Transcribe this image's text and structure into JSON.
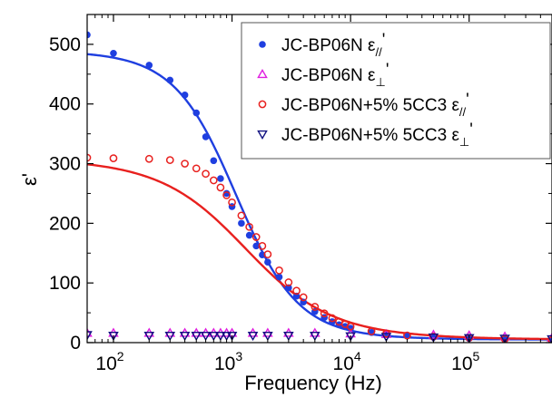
{
  "chart_data": {
    "type": "scatter",
    "title": "",
    "xlabel": "Frequency (Hz)",
    "ylabel": "ε'",
    "xscale": "log",
    "xlim": [
      60,
      500000
    ],
    "ylim": [
      0,
      550
    ],
    "x_ticks": [
      {
        "value": 100,
        "label": "10",
        "exp": "2"
      },
      {
        "value": 1000,
        "label": "10",
        "exp": "3"
      },
      {
        "value": 10000,
        "label": "10",
        "exp": "4"
      },
      {
        "value": 100000,
        "label": "10",
        "exp": "5"
      }
    ],
    "y_ticks": [
      0,
      100,
      200,
      300,
      400,
      500
    ],
    "legend_position": "top-right",
    "series": [
      {
        "name": "JC-BP06N ε//'",
        "legend_base": "JC-BP06N ε",
        "legend_sub": "//",
        "marker": "filled-circle",
        "color": "#1f3fe0",
        "x": [
          60,
          100,
          200,
          300,
          400,
          500,
          600,
          700,
          800,
          900,
          1000,
          1200,
          1400,
          1600,
          1800,
          2000,
          2500,
          3000,
          3500,
          4000,
          5000,
          6000,
          7000,
          8000,
          9000,
          10000,
          15000,
          20000,
          30000,
          50000,
          100000,
          200000,
          500000
        ],
        "y": [
          516,
          485,
          465,
          440,
          415,
          385,
          345,
          305,
          275,
          250,
          228,
          200,
          180,
          162,
          147,
          135,
          110,
          92,
          78,
          68,
          52,
          42,
          35,
          30,
          27,
          24,
          17,
          13,
          11,
          9,
          7,
          5,
          3
        ]
      },
      {
        "name": "JC-BP06N ε⊥'",
        "legend_base": "JC-BP06N ε",
        "legend_sub": "⊥",
        "marker": "open-triangle-up",
        "color": "#e01ee0",
        "x": [
          60,
          100,
          200,
          300,
          400,
          500,
          600,
          700,
          800,
          900,
          1000,
          1500,
          2000,
          3000,
          5000,
          10000,
          20000,
          50000,
          100000,
          200000,
          500000
        ],
        "y": [
          16,
          16,
          16,
          16,
          16,
          16,
          16,
          16,
          16,
          16,
          16,
          16,
          16,
          16,
          16,
          15,
          14,
          13,
          12,
          10,
          8
        ]
      },
      {
        "name": "JC-BP06N+5% 5CC3 ε//'",
        "legend_base": "JC-BP06N+5% 5CC3 ε",
        "legend_sub": "//",
        "marker": "open-circle",
        "color": "#e8201e",
        "x": [
          60,
          100,
          200,
          300,
          400,
          500,
          600,
          700,
          800,
          900,
          1000,
          1200,
          1400,
          1600,
          1800,
          2000,
          2500,
          3000,
          3500,
          4000,
          5000,
          6000,
          7000,
          8000,
          9000,
          10000,
          15000,
          20000,
          30000,
          50000,
          100000,
          200000,
          500000
        ],
        "y": [
          310,
          309,
          308,
          306,
          300,
          292,
          283,
          272,
          260,
          247,
          235,
          213,
          194,
          177,
          162,
          148,
          121,
          101,
          87,
          76,
          60,
          49,
          41,
          35,
          31,
          27,
          19,
          15,
          12,
          10,
          8,
          6,
          4
        ]
      },
      {
        "name": "JC-BP06N+5% 5CC3 ε⊥'",
        "legend_base": "JC-BP06N+5% 5CC3 ε",
        "legend_sub": "⊥",
        "marker": "open-triangle-down",
        "color": "#101080",
        "x": [
          60,
          100,
          200,
          300,
          400,
          500,
          600,
          700,
          800,
          900,
          1000,
          1500,
          2000,
          3000,
          5000,
          10000,
          20000,
          50000,
          100000,
          200000,
          500000
        ],
        "y": [
          13,
          12,
          12,
          12,
          12,
          12,
          12,
          12,
          12,
          12,
          12,
          12,
          12,
          12,
          12,
          11,
          10,
          9,
          8,
          7,
          6
        ]
      }
    ],
    "fits": [
      {
        "color": "#1f3fe0",
        "eps_high": 5,
        "delta_eps": 485,
        "tau": 0.000147,
        "alpha": 0.92
      },
      {
        "color": "#e8201e",
        "eps_high": 5,
        "delta_eps": 305,
        "tau": 0.000122,
        "alpha": 0.78
      }
    ]
  }
}
